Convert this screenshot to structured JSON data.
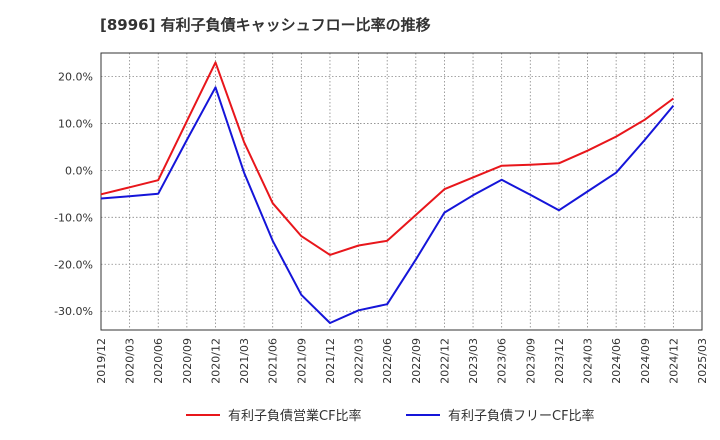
{
  "title": "[8996]  有利子負債キャッシュフロー比率の推移",
  "chart_data": {
    "type": "line",
    "title": "[8996]  有利子負債キャッシュフロー比率の推移",
    "x": [
      "2019/12",
      "2020/03",
      "2020/06",
      "2020/09",
      "2020/12",
      "2021/03",
      "2021/06",
      "2021/09",
      "2021/12",
      "2022/03",
      "2022/06",
      "2022/09",
      "2022/12",
      "2023/03",
      "2023/06",
      "2023/09",
      "2023/12",
      "2024/03",
      "2024/06",
      "2024/09",
      "2024/12",
      "2025/03"
    ],
    "ylim": [
      -34,
      25
    ],
    "yticks": [
      20,
      10,
      0,
      -10,
      -20,
      -30
    ],
    "ytick_labels": [
      "20.0%",
      "10.0%",
      "0.0%",
      "-10.0%",
      "-20.0%",
      "-30.0%"
    ],
    "grid": true,
    "legend": "bottom",
    "series": [
      {
        "name": "有利子負債営業CF比率",
        "color": "#e8161b",
        "values": [
          -5.1,
          -3.6,
          -2.1,
          10.5,
          23.0,
          6.0,
          -7.0,
          -14.0,
          -18.0,
          -16.0,
          -15.0,
          -9.5,
          -4.0,
          -1.5,
          1.0,
          1.2,
          1.5,
          4.2,
          7.2,
          10.8,
          15.3,
          null
        ]
      },
      {
        "name": "有利子負債フリーCF比率",
        "color": "#1515d9",
        "values": [
          -6.0,
          -5.5,
          -5.0,
          6.5,
          17.7,
          -0.5,
          -15.0,
          -26.5,
          -32.5,
          -29.8,
          -28.5,
          -19.0,
          -9.0,
          -5.3,
          -2.0,
          -5.2,
          -8.5,
          -4.5,
          -0.5,
          6.5,
          13.8,
          null
        ]
      }
    ]
  }
}
